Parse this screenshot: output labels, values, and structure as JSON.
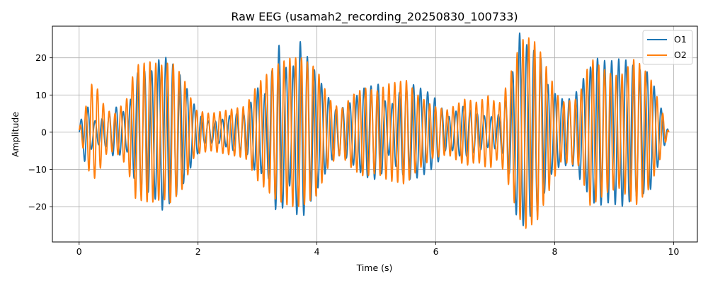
{
  "chart_data": {
    "type": "line",
    "title": "Raw EEG (usamah2_recording_20250830_100733)",
    "xlabel": "Time (s)",
    "ylabel": "Amplitude",
    "xlim": [
      -0.45,
      10.4
    ],
    "ylim": [
      -29.5,
      28.5
    ],
    "xticks": [
      0,
      2,
      4,
      6,
      8,
      10
    ],
    "yticks": [
      -20,
      -10,
      0,
      10,
      20
    ],
    "xtick_labels": [
      "0",
      "2",
      "4",
      "6",
      "8",
      "10"
    ],
    "ytick_labels": [
      "−20",
      "−10",
      "0",
      "10",
      "20"
    ],
    "grid": true,
    "legend_position": "top-right",
    "duration_s": 9.92,
    "series": [
      {
        "name": "O1",
        "color": "#1f77b4",
        "frequency_hz": 8.4,
        "envelope": [
          [
            0.0,
            1
          ],
          [
            0.1,
            8.5
          ],
          [
            0.25,
            3
          ],
          [
            0.45,
            4
          ],
          [
            0.6,
            7
          ],
          [
            0.8,
            5
          ],
          [
            1.0,
            17
          ],
          [
            1.2,
            16
          ],
          [
            1.4,
            21
          ],
          [
            1.6,
            18
          ],
          [
            1.75,
            14
          ],
          [
            1.95,
            7
          ],
          [
            2.1,
            3
          ],
          [
            2.35,
            3
          ],
          [
            2.6,
            5
          ],
          [
            2.8,
            5
          ],
          [
            3.0,
            12
          ],
          [
            3.15,
            10
          ],
          [
            3.35,
            24
          ],
          [
            3.55,
            14
          ],
          [
            3.7,
            25
          ],
          [
            3.85,
            20
          ],
          [
            4.05,
            14
          ],
          [
            4.3,
            6
          ],
          [
            4.5,
            7
          ],
          [
            4.8,
            12
          ],
          [
            5.05,
            13
          ],
          [
            5.2,
            6
          ],
          [
            5.4,
            11
          ],
          [
            5.6,
            13
          ],
          [
            5.85,
            11
          ],
          [
            6.0,
            9
          ],
          [
            6.2,
            4
          ],
          [
            6.45,
            7
          ],
          [
            6.7,
            5
          ],
          [
            6.9,
            4
          ],
          [
            7.1,
            5
          ],
          [
            7.25,
            12
          ],
          [
            7.4,
            27
          ],
          [
            7.55,
            23
          ],
          [
            7.75,
            21
          ],
          [
            7.9,
            12
          ],
          [
            8.1,
            9
          ],
          [
            8.3,
            9
          ],
          [
            8.5,
            15
          ],
          [
            8.7,
            20
          ],
          [
            8.9,
            19
          ],
          [
            9.15,
            20
          ],
          [
            9.4,
            17
          ],
          [
            9.6,
            16
          ],
          [
            9.8,
            6
          ],
          [
            9.92,
            0
          ]
        ]
      },
      {
        "name": "O2",
        "color": "#ff7f0e",
        "frequency_hz": 10.2,
        "envelope": [
          [
            0.0,
            1
          ],
          [
            0.1,
            6
          ],
          [
            0.2,
            13
          ],
          [
            0.3,
            12
          ],
          [
            0.45,
            6
          ],
          [
            0.6,
            5
          ],
          [
            0.8,
            9
          ],
          [
            0.95,
            18
          ],
          [
            1.2,
            19
          ],
          [
            1.4,
            18
          ],
          [
            1.55,
            19
          ],
          [
            1.75,
            15
          ],
          [
            1.95,
            6
          ],
          [
            2.2,
            5
          ],
          [
            2.5,
            6
          ],
          [
            2.8,
            7
          ],
          [
            3.0,
            13
          ],
          [
            3.3,
            18
          ],
          [
            3.55,
            20
          ],
          [
            3.75,
            20
          ],
          [
            4.0,
            17
          ],
          [
            4.2,
            9
          ],
          [
            4.4,
            6
          ],
          [
            4.6,
            10
          ],
          [
            4.8,
            12
          ],
          [
            5.0,
            11
          ],
          [
            5.2,
            13
          ],
          [
            5.5,
            14
          ],
          [
            5.7,
            10
          ],
          [
            5.95,
            7
          ],
          [
            6.2,
            6
          ],
          [
            6.5,
            9
          ],
          [
            6.7,
            8
          ],
          [
            6.9,
            10
          ],
          [
            7.05,
            7
          ],
          [
            7.2,
            13
          ],
          [
            7.4,
            23
          ],
          [
            7.5,
            26
          ],
          [
            7.7,
            24
          ],
          [
            7.9,
            16
          ],
          [
            8.1,
            8
          ],
          [
            8.4,
            9
          ],
          [
            8.6,
            20
          ],
          [
            8.9,
            16
          ],
          [
            9.1,
            15
          ],
          [
            9.35,
            20
          ],
          [
            9.6,
            15
          ],
          [
            9.8,
            6
          ],
          [
            9.92,
            0
          ]
        ]
      }
    ]
  }
}
